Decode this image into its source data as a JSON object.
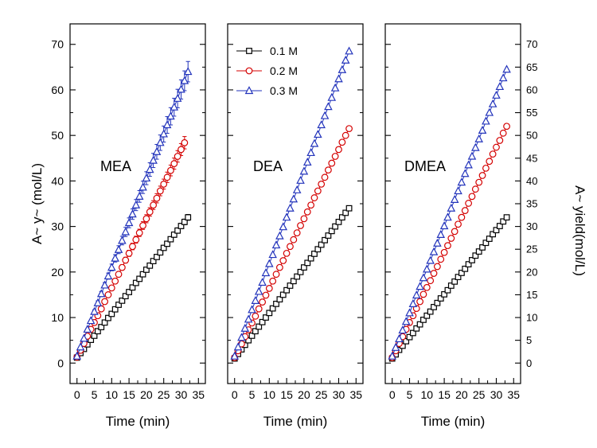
{
  "figure": {
    "bg": "#ffffff",
    "xlabel": "Time (min)",
    "ylabel_left": "A~ y~ (mol/L)",
    "ylabel_right": "A~ yield(mol/L)"
  },
  "colors": {
    "series_01M": "#000000",
    "series_02M": "#d40000",
    "series_03M": "#2233bb",
    "axis": "#000000",
    "background": "#ffffff"
  },
  "legend": {
    "position": "top-left-of-middle-panel",
    "items": [
      {
        "label": "0.1 M",
        "marker": "square",
        "color": "#000000"
      },
      {
        "label": "0.2 M",
        "marker": "circle",
        "color": "#d40000"
      },
      {
        "label": "0.3 M",
        "marker": "triangle",
        "color": "#2233bb"
      }
    ]
  },
  "chart_data": [
    {
      "type": "scatter",
      "title": "MEA",
      "xlabel": "Time (min)",
      "ylabel": "A~ y~ (mol/L)",
      "xlim": [
        -2,
        37
      ],
      "ylim": [
        -4.5,
        74.5
      ],
      "x_ticks": [
        0,
        5,
        10,
        15,
        20,
        25,
        30,
        35
      ],
      "y_ticks": [
        0,
        10,
        20,
        30,
        40,
        50,
        60,
        70
      ],
      "y_tick_labels": "left",
      "grid": false,
      "series": [
        {
          "name": "0.1 M",
          "marker": "square",
          "color": "#000000",
          "yerr_frac": 0.02,
          "x": [
            0,
            1,
            2,
            3,
            4,
            5,
            6,
            7,
            8,
            9,
            10,
            11,
            12,
            13,
            14,
            15,
            16,
            17,
            18,
            19,
            20,
            21,
            22,
            23,
            24,
            25,
            26,
            27,
            28,
            29,
            30,
            31,
            32
          ],
          "y": [
            1.2,
            2.2,
            3.1,
            4.1,
            5.1,
            6.0,
            7.0,
            7.9,
            8.9,
            9.9,
            10.8,
            11.8,
            12.8,
            13.7,
            14.7,
            15.6,
            16.6,
            17.6,
            18.5,
            19.5,
            20.5,
            21.4,
            22.4,
            23.3,
            24.3,
            25.3,
            26.2,
            27.2,
            28.2,
            29.1,
            30.1,
            31.0,
            32.0
          ]
        },
        {
          "name": "0.2 M",
          "marker": "circle",
          "color": "#d40000",
          "yerr_frac": 0.028,
          "x": [
            0,
            1,
            2,
            3,
            4,
            5,
            6,
            7,
            8,
            9,
            10,
            11,
            12,
            13,
            14,
            15,
            16,
            17,
            18,
            19,
            20,
            21,
            22,
            23,
            24,
            25,
            26,
            27,
            28,
            29,
            30,
            31
          ],
          "y": [
            1.3,
            2.8,
            4.3,
            5.9,
            7.4,
            8.9,
            10.4,
            11.9,
            13.5,
            15.0,
            16.5,
            18.0,
            19.5,
            21.0,
            22.6,
            24.1,
            25.6,
            27.1,
            28.6,
            30.2,
            31.7,
            33.2,
            34.7,
            36.2,
            37.8,
            39.3,
            40.8,
            42.3,
            43.8,
            45.4,
            46.9,
            48.4
          ]
        },
        {
          "name": "0.3 M",
          "marker": "triangle",
          "color": "#2233bb",
          "yerr_frac": 0.035,
          "x": [
            0,
            1,
            2,
            3,
            4,
            5,
            6,
            7,
            8,
            9,
            10,
            11,
            12,
            13,
            14,
            15,
            16,
            17,
            18,
            19,
            20,
            21,
            22,
            23,
            24,
            25,
            26,
            27,
            28,
            29,
            30,
            31,
            32
          ],
          "y": [
            1.5,
            3.5,
            5.4,
            7.4,
            9.3,
            11.3,
            13.2,
            15.2,
            17.1,
            19.1,
            21.0,
            23.0,
            24.9,
            26.9,
            28.8,
            30.8,
            32.7,
            34.7,
            36.6,
            38.6,
            40.6,
            42.5,
            44.5,
            46.4,
            48.4,
            50.3,
            52.3,
            54.2,
            56.2,
            58.1,
            60.1,
            62.0,
            64.0
          ]
        }
      ]
    },
    {
      "type": "scatter",
      "title": "DEA",
      "xlabel": "Time (min)",
      "xlim": [
        -2,
        37
      ],
      "ylim": [
        -4.5,
        74.5
      ],
      "x_ticks": [
        0,
        5,
        10,
        15,
        20,
        25,
        30,
        35
      ],
      "y_ticks": [
        0,
        10,
        20,
        30,
        40,
        50,
        60,
        70
      ],
      "y_tick_labels": "none",
      "grid": false,
      "series": [
        {
          "name": "0.1 M",
          "marker": "square",
          "color": "#000000",
          "yerr_frac": 0,
          "x": [
            0,
            1,
            2,
            3,
            4,
            5,
            6,
            7,
            8,
            9,
            10,
            11,
            12,
            13,
            14,
            15,
            16,
            17,
            18,
            19,
            20,
            21,
            22,
            23,
            24,
            25,
            26,
            27,
            28,
            29,
            30,
            31,
            32,
            33
          ],
          "y": [
            1,
            2,
            3,
            4,
            5,
            6,
            7,
            8,
            9,
            10,
            11,
            12,
            13,
            14,
            15,
            16,
            17,
            18,
            19,
            20,
            21,
            22,
            23,
            24,
            25,
            26,
            27,
            28,
            29,
            30,
            31,
            32,
            33,
            34
          ]
        },
        {
          "name": "0.2 M",
          "marker": "circle",
          "color": "#d40000",
          "yerr_frac": 0,
          "x": [
            0,
            1,
            2,
            3,
            4,
            5,
            6,
            7,
            8,
            9,
            10,
            11,
            12,
            13,
            14,
            15,
            16,
            17,
            18,
            19,
            20,
            21,
            22,
            23,
            24,
            25,
            26,
            27,
            28,
            29,
            30,
            31,
            32,
            33
          ],
          "y": [
            1.2,
            2.7,
            4.2,
            5.8,
            7.3,
            8.8,
            10.3,
            11.9,
            13.4,
            14.9,
            16.4,
            18.0,
            19.5,
            21.0,
            22.5,
            24.1,
            25.6,
            27.1,
            28.6,
            30.2,
            31.7,
            33.2,
            34.7,
            36.3,
            37.8,
            39.3,
            40.8,
            42.4,
            43.9,
            45.4,
            46.9,
            48.5,
            50.0,
            51.5
          ]
        },
        {
          "name": "0.3 M",
          "marker": "triangle",
          "color": "#2233bb",
          "yerr_frac": 0,
          "x": [
            0,
            1,
            2,
            3,
            4,
            5,
            6,
            7,
            8,
            9,
            10,
            11,
            12,
            13,
            14,
            15,
            16,
            17,
            18,
            19,
            20,
            21,
            22,
            23,
            24,
            25,
            26,
            27,
            28,
            29,
            30,
            31,
            32,
            33
          ],
          "y": [
            1.5,
            3.5,
            5.6,
            7.6,
            9.6,
            11.7,
            13.7,
            15.7,
            17.7,
            19.8,
            21.8,
            23.8,
            25.9,
            27.9,
            29.9,
            32.0,
            34.0,
            36.0,
            38.0,
            40.1,
            42.1,
            44.1,
            46.2,
            48.2,
            50.2,
            52.3,
            54.3,
            56.3,
            58.3,
            60.4,
            62.4,
            64.4,
            66.5,
            68.5
          ]
        }
      ]
    },
    {
      "type": "scatter",
      "title": "DMEA",
      "xlabel": "Time (min)",
      "ylabel_right": "A~ yield(mol/L)",
      "xlim": [
        -2,
        37
      ],
      "ylim": [
        -4.5,
        74.5
      ],
      "x_ticks": [
        0,
        5,
        10,
        15,
        20,
        25,
        30,
        35
      ],
      "y_ticks": [
        0,
        10,
        20,
        30,
        40,
        50,
        60,
        70
      ],
      "y_tick_labels": "right",
      "y_ticks_right": [
        0,
        5,
        10,
        15,
        20,
        25,
        30,
        35,
        40,
        45,
        50,
        55,
        60,
        65,
        70
      ],
      "grid": false,
      "series": [
        {
          "name": "0.1 M",
          "marker": "square",
          "color": "#000000",
          "yerr_frac": 0,
          "x": [
            0,
            1,
            2,
            3,
            4,
            5,
            6,
            7,
            8,
            9,
            10,
            11,
            12,
            13,
            14,
            15,
            16,
            17,
            18,
            19,
            20,
            21,
            22,
            23,
            24,
            25,
            26,
            27,
            28,
            29,
            30,
            31,
            32,
            33
          ],
          "y": [
            1.0,
            1.9,
            2.9,
            3.8,
            4.8,
            5.7,
            6.6,
            7.6,
            8.5,
            9.5,
            10.4,
            11.3,
            12.3,
            13.2,
            14.2,
            15.1,
            16.0,
            17.0,
            17.9,
            18.9,
            19.8,
            20.7,
            21.7,
            22.6,
            23.6,
            24.5,
            25.4,
            26.4,
            27.3,
            28.3,
            29.2,
            30.1,
            31.1,
            32.0
          ]
        },
        {
          "name": "0.2 M",
          "marker": "circle",
          "color": "#d40000",
          "yerr_frac": 0,
          "x": [
            0,
            1,
            2,
            3,
            4,
            5,
            6,
            7,
            8,
            9,
            10,
            11,
            12,
            13,
            14,
            15,
            16,
            17,
            18,
            19,
            20,
            21,
            22,
            23,
            24,
            25,
            26,
            27,
            28,
            29,
            30,
            31,
            32,
            33
          ],
          "y": [
            1.2,
            2.7,
            4.3,
            5.8,
            7.4,
            8.9,
            10.4,
            12.0,
            13.5,
            15.1,
            16.6,
            18.1,
            19.7,
            21.2,
            22.8,
            24.3,
            25.8,
            27.4,
            28.9,
            30.5,
            32.0,
            33.5,
            35.1,
            36.6,
            38.2,
            39.7,
            41.2,
            42.8,
            44.3,
            45.9,
            47.4,
            48.9,
            50.5,
            52.0
          ]
        },
        {
          "name": "0.3 M",
          "marker": "triangle",
          "color": "#2233bb",
          "yerr_frac": 0,
          "x": [
            0,
            1,
            2,
            3,
            4,
            5,
            6,
            7,
            8,
            9,
            10,
            11,
            12,
            13,
            14,
            15,
            16,
            17,
            18,
            19,
            20,
            21,
            22,
            23,
            24,
            25,
            26,
            27,
            28,
            29,
            30,
            31,
            32,
            33
          ],
          "y": [
            1.5,
            3.4,
            5.3,
            7.2,
            9.1,
            11.0,
            13.0,
            14.9,
            16.8,
            18.7,
            20.6,
            22.5,
            24.4,
            26.3,
            28.2,
            30.1,
            32.0,
            34.0,
            35.9,
            37.8,
            39.7,
            41.6,
            43.5,
            45.4,
            47.3,
            49.2,
            51.1,
            53.1,
            55.0,
            56.9,
            58.8,
            60.7,
            62.6,
            64.5
          ]
        }
      ]
    }
  ]
}
